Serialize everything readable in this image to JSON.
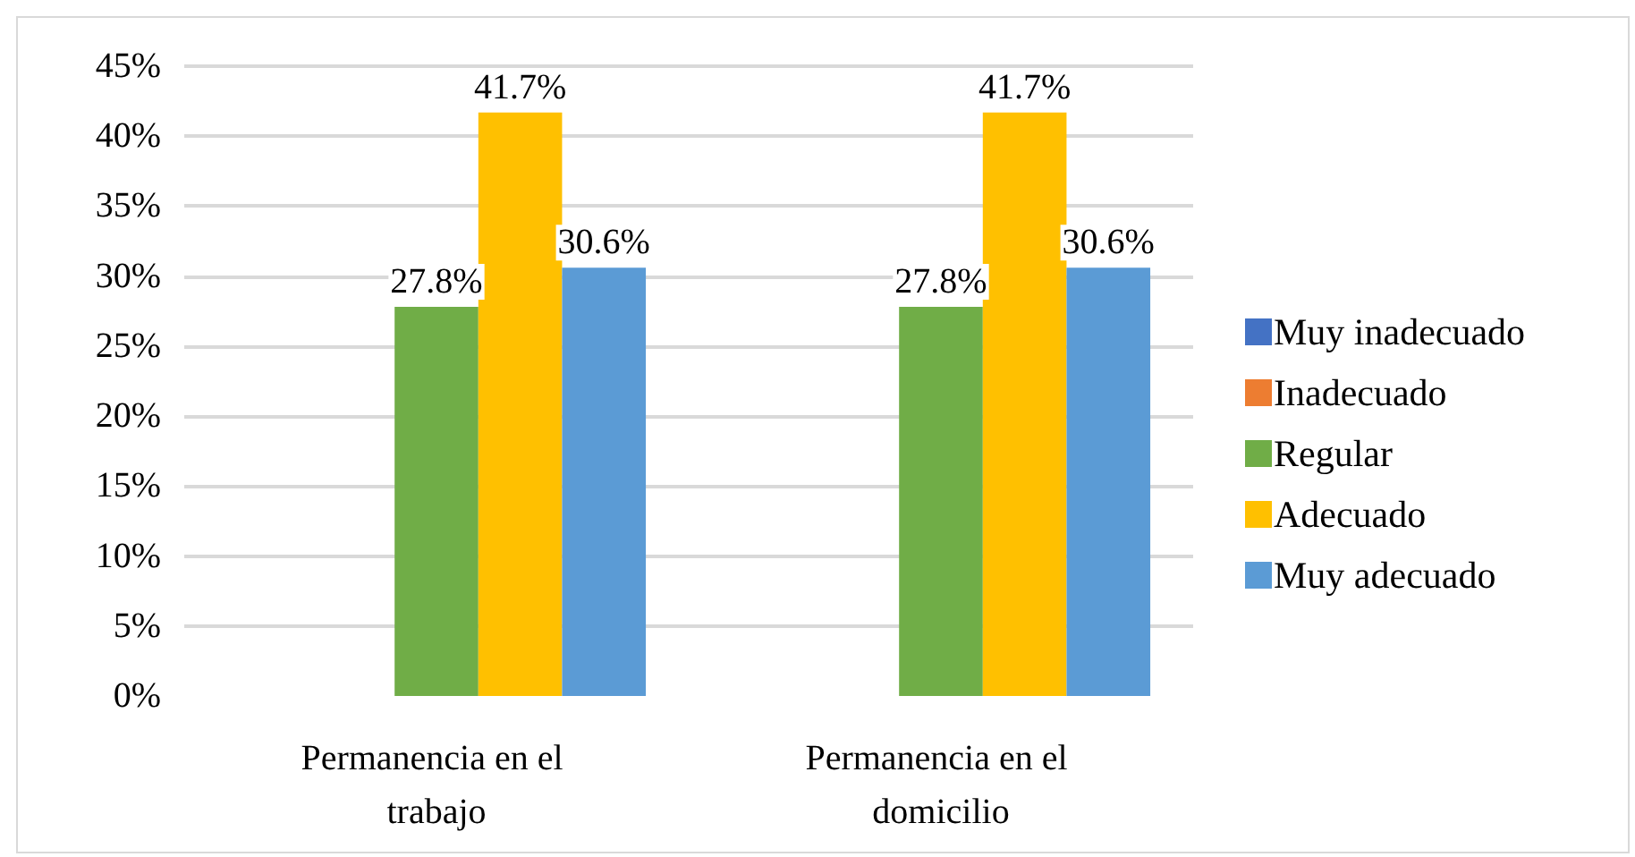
{
  "chart_data": {
    "type": "bar",
    "categories": [
      "Permanencia en el trabajo",
      "Permanencia en el domicilio"
    ],
    "series": [
      {
        "name": "Muy inadecuado",
        "color": "#4472c4",
        "values": [
          null,
          null
        ]
      },
      {
        "name": "Inadecuado",
        "color": "#ed7d31",
        "values": [
          null,
          null
        ]
      },
      {
        "name": "Regular",
        "color": "#70ad47",
        "values": [
          27.8,
          27.8
        ],
        "value_labels": [
          "27.8%",
          "27.8%"
        ]
      },
      {
        "name": "Adecuado",
        "color": "#ffc000",
        "values": [
          41.7,
          41.7
        ],
        "value_labels": [
          "41.7%",
          "41.7%"
        ]
      },
      {
        "name": "Muy adecuado",
        "color": "#5b9bd5",
        "values": [
          30.6,
          30.6
        ],
        "value_labels": [
          "30.6%",
          "30.6%"
        ]
      }
    ],
    "ylim": [
      0,
      45
    ],
    "yticks": [
      {
        "value": 0,
        "label": "0%"
      },
      {
        "value": 5,
        "label": "5%"
      },
      {
        "value": 10,
        "label": "10%"
      },
      {
        "value": 15,
        "label": "15%"
      },
      {
        "value": 20,
        "label": "20%"
      },
      {
        "value": 25,
        "label": "25%"
      },
      {
        "value": 30,
        "label": "30%"
      },
      {
        "value": 35,
        "label": "35%"
      },
      {
        "value": 40,
        "label": "40%"
      },
      {
        "value": 45,
        "label": "45%"
      }
    ],
    "grid": "y",
    "legend": "right"
  }
}
